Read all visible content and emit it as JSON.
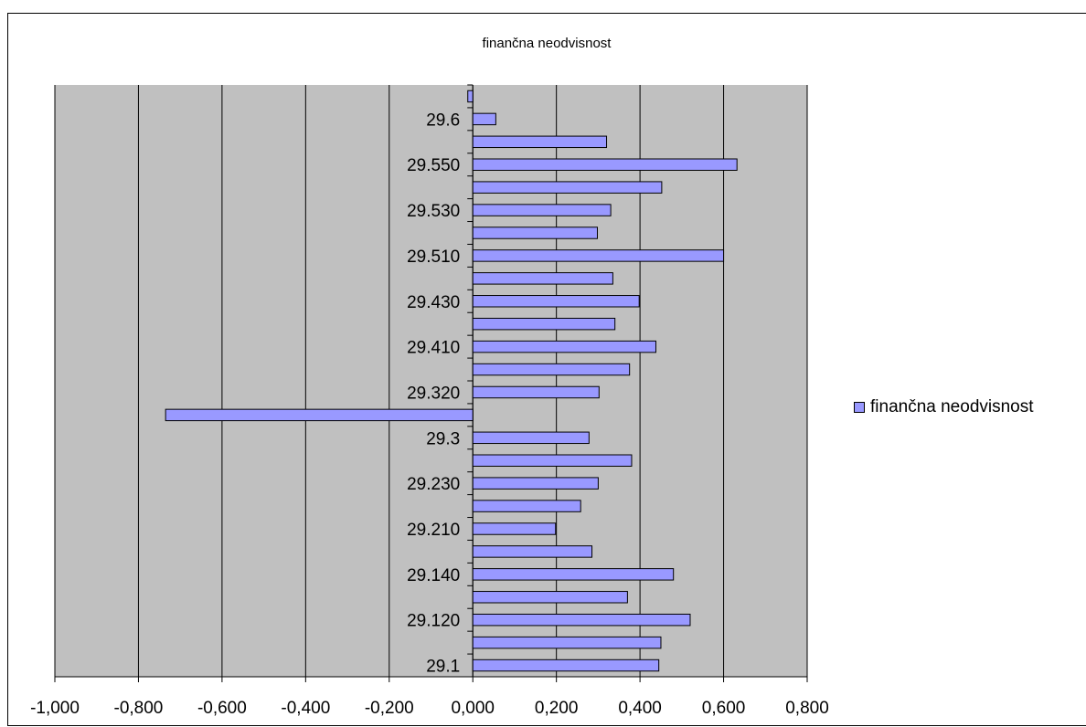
{
  "chart_data": {
    "type": "bar",
    "orientation": "horizontal",
    "title": "finančna neodvisnost",
    "xlabel": "",
    "ylabel": "",
    "xlim": [
      -1.0,
      0.8
    ],
    "x_ticks": [
      "-1,000",
      "-0,800",
      "-0,600",
      "-0,400",
      "-0,200",
      "0,000",
      "0,200",
      "0,400",
      "0,600",
      "0,800"
    ],
    "x_tick_values": [
      -1.0,
      -0.8,
      -0.6,
      -0.4,
      -0.2,
      0.0,
      0.2,
      0.4,
      0.6,
      0.8
    ],
    "categories": [
      "29.1",
      "",
      "29.120",
      "",
      "29.140",
      "",
      "29.210",
      "",
      "29.230",
      "",
      "29.3",
      "",
      "29.320",
      "",
      "29.410",
      "",
      "29.430",
      "",
      "29.510",
      "",
      "29.530",
      "",
      "29.550",
      "",
      "29.6",
      ""
    ],
    "series": [
      {
        "name": "finančna neodvisnost",
        "color": "#9999ff",
        "values": [
          0.445,
          0.45,
          0.52,
          0.37,
          0.48,
          0.285,
          0.198,
          0.258,
          0.3,
          0.38,
          0.278,
          -0.735,
          0.302,
          0.375,
          0.438,
          0.34,
          0.398,
          0.335,
          0.6,
          0.298,
          0.33,
          0.452,
          0.632,
          0.32,
          0.055,
          -0.012
        ]
      }
    ],
    "grid": "vertical",
    "plot_background": "#c0c0c0",
    "legend_position": "right"
  }
}
